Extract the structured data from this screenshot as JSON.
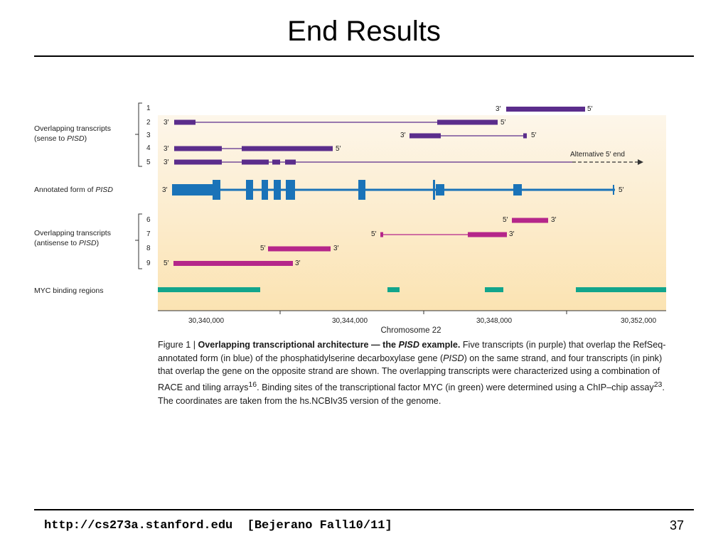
{
  "slide": {
    "title": "End Results",
    "footer_left": "http://cs273a.stanford.edu  [Bejerano Fall10/11]",
    "page_number": "37"
  },
  "figure": {
    "group_sense_label_1": "Overlapping transcripts",
    "group_sense_label_2_pre": "(sense to ",
    "group_sense_label_2_gene": "PISD",
    "group_sense_label_2_post": ")",
    "annotated_label_pre": "Annotated form of ",
    "annotated_label_gene": "PISD",
    "group_antisense_label_1": "Overlapping transcripts",
    "group_antisense_label_2_pre": "(antisense to ",
    "group_antisense_label_2_gene": "PISD",
    "group_antisense_label_2_post": ")",
    "myc_label": "MYC binding regions",
    "alt_end_label": "Alternative 5′ end",
    "x_axis_label": "Chromosome 22",
    "x_ticks": [
      "30,340,000",
      "30,344,000",
      "30,348,000",
      "30,352,000"
    ],
    "row_numbers": [
      "1",
      "2",
      "3",
      "4",
      "5",
      "6",
      "7",
      "8",
      "9"
    ],
    "end_3": "3′",
    "end_5": "5′",
    "colors": {
      "sense": "#5b2d8c",
      "pisd": "#1a73b8",
      "antisense": "#b5268a",
      "myc": "#12a58c",
      "background_top": "#fdf6ea",
      "background_bottom": "#fbe3b2"
    }
  },
  "caption": {
    "fig_num": "Figure 1 | ",
    "bold_pre": "Overlapping transcriptional architecture — the ",
    "bold_gene": "PISD",
    "bold_post": " example.",
    "t1": " Five transcripts (in purple) that overlap the RefSeq-annotated form (in blue) of the phosphatidylserine decarboxylase gene (",
    "t1_gene": "PISD",
    "t2": ") on the same strand, and four transcripts (in pink) that overlap the gene on the opposite strand are shown. The overlapping transcripts were characterized using a combination of RACE and tiling arrays",
    "ref1": "16",
    "t3": ". Binding sites of the transcriptional factor MYC (in green) were determined using a ChIP–chip assay",
    "ref2": "23",
    "t4": ". The coordinates are taken from the hs.NCBIv35 version of the genome."
  }
}
